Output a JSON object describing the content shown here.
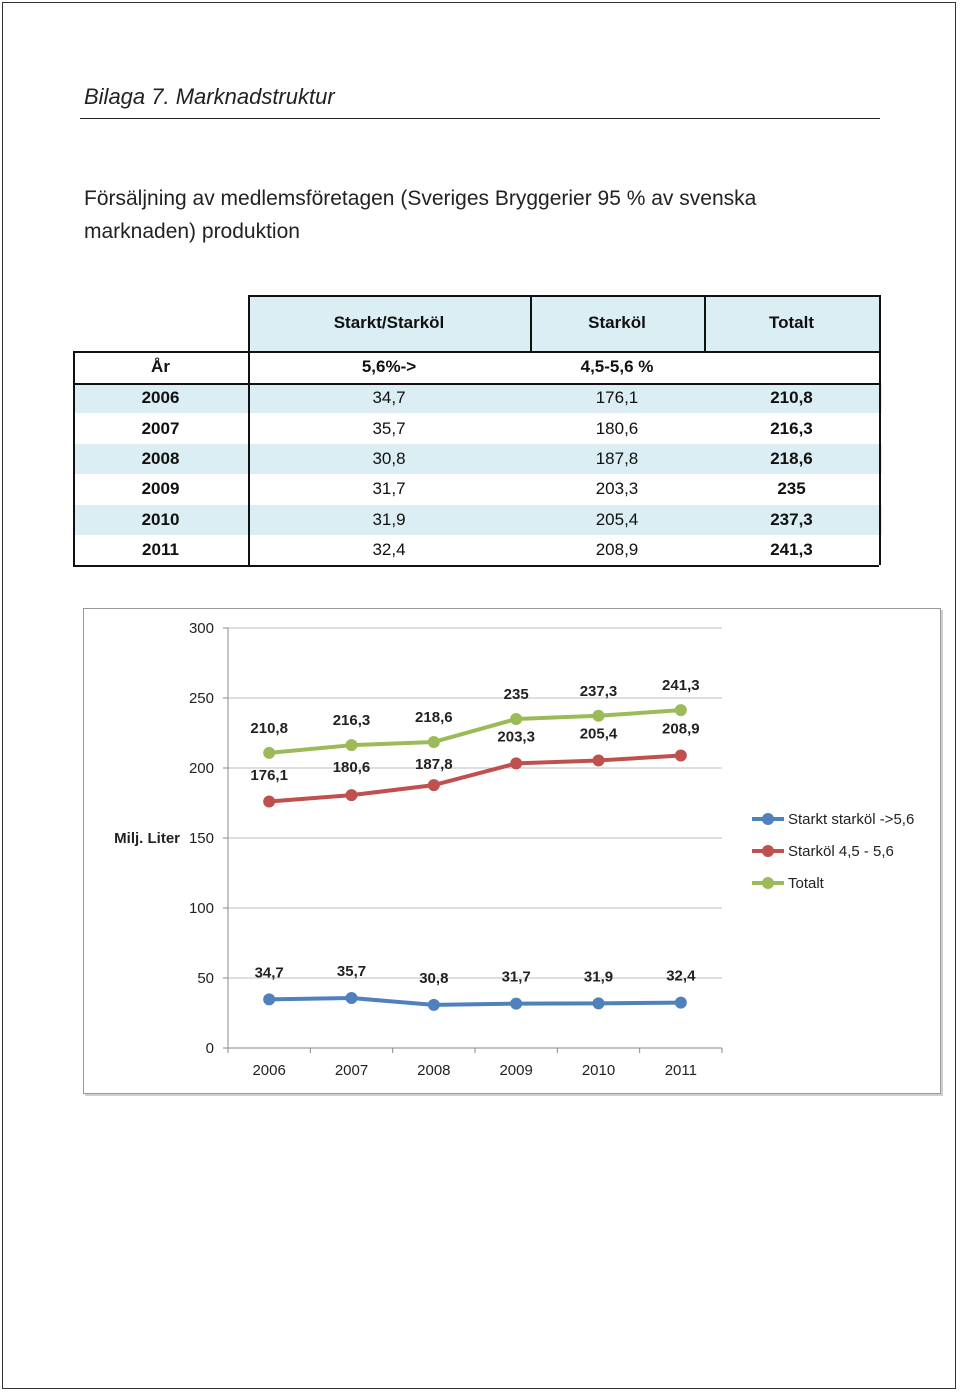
{
  "page": {
    "heading": "Bilaga 7. Marknadstruktur",
    "intro": "Försäljning av medlemsföretagen (Sveriges Bryggerier 95 % av svenska marknaden) produktion"
  },
  "table": {
    "headers": [
      "",
      "Starkt/Starköl",
      "Starköl",
      "Totalt"
    ],
    "subheaders": [
      "År",
      "5,6%->",
      "4,5-5,6 %",
      ""
    ],
    "rows": [
      [
        "2006",
        "34,7",
        "176,1",
        "210,8"
      ],
      [
        "2007",
        "35,7",
        "180,6",
        "216,3"
      ],
      [
        "2008",
        "30,8",
        "187,8",
        "218,6"
      ],
      [
        "2009",
        "31,7",
        "203,3",
        "235"
      ],
      [
        "2010",
        "31,9",
        "205,4",
        "237,3"
      ],
      [
        "2011",
        "32,4",
        "208,9",
        "241,3"
      ]
    ]
  },
  "colors": {
    "header_fill": "#daeef3",
    "series_blue": "#4f81bd",
    "series_red": "#c0504d",
    "series_green": "#9bbb59"
  },
  "chart_data": {
    "type": "line",
    "x": [
      "2006",
      "2007",
      "2008",
      "2009",
      "2010",
      "2011"
    ],
    "ylabel": "Milj. Liter",
    "ylim": [
      0,
      300
    ],
    "yticks": [
      "0",
      "50",
      "100",
      "150",
      "200",
      "250",
      "300"
    ],
    "grid": true,
    "legend_position": "right",
    "series": [
      {
        "name": "Starkt starköl ->5,6",
        "values": [
          34.7,
          35.7,
          30.8,
          31.7,
          31.9,
          32.4
        ],
        "labels": [
          "34,7",
          "35,7",
          "30,8",
          "31,7",
          "31,9",
          "32,4"
        ],
        "color": "#4f81bd"
      },
      {
        "name": "Starköl 4,5 - 5,6",
        "values": [
          176.1,
          180.6,
          187.8,
          203.3,
          205.4,
          208.9
        ],
        "labels": [
          "176,1",
          "180,6",
          "187,8",
          "203,3",
          "205,4",
          "208,9"
        ],
        "color": "#c0504d"
      },
      {
        "name": "Totalt",
        "values": [
          210.8,
          216.3,
          218.6,
          235,
          237.3,
          241.3
        ],
        "labels": [
          "210,8",
          "216,3",
          "218,6",
          "235",
          "237,3",
          "241,3"
        ],
        "color": "#9bbb59"
      }
    ]
  }
}
